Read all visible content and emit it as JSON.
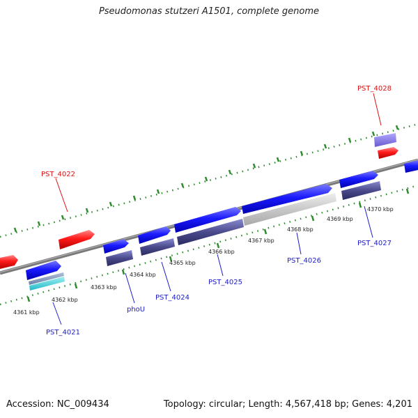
{
  "title": "Pseudomonas stutzeri A1501, complete genome",
  "footer": {
    "accession": "Accession: NC_009434",
    "summary": "Topology: circular; Length: 4,567,418 bp; Genes: 4,201"
  },
  "colors": {
    "backbone": "#808080",
    "tick": "#2e8b2e",
    "forward_gene": "#1a1aff",
    "reverse_gene": "#ff1a1a",
    "cds_feature": "#4a4a8c",
    "label_forward": "#1c1ccc",
    "label_reverse": "#dd1111"
  },
  "scale_labels": [
    "4361 kbp",
    "4362 kbp",
    "4363 kbp",
    "4364 kbp",
    "4365 kbp",
    "4366 kbp",
    "4367 kbp",
    "4368 kbp",
    "4369 kbp",
    "4370 kbp"
  ],
  "gene_labels": [
    "PST_4021",
    "phoU",
    "PST_4024",
    "PST_4025",
    "PST_4026",
    "PST_4027",
    "PST_4022",
    "PST_4028"
  ]
}
